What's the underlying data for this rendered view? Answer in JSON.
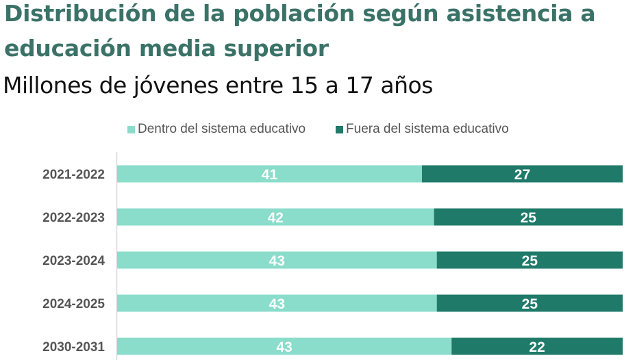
{
  "header": {
    "title": "Distribución de la población según asistencia a educación media superior",
    "subtitle": "Millones de jóvenes entre 15 a 17 años"
  },
  "colors": {
    "title": "#3B7268",
    "dentro": "#8ADCCB",
    "fuera": "#1F7A6A",
    "axis": "#D9D9D9"
  },
  "chart_data": {
    "type": "bar",
    "orientation": "horizontal",
    "stacked": true,
    "normalized": true,
    "title": "Distribución de la población según asistencia a educación media superior",
    "subtitle": "Millones de jóvenes entre 15 a 17 años",
    "xlabel": "",
    "ylabel": "",
    "grid": false,
    "legend_position": "top",
    "categories": [
      "2021-2022",
      "2022-2023",
      "2023-2024",
      "2024-2025",
      "2030-2031"
    ],
    "series": [
      {
        "name": "Dentro del sistema educativo",
        "color": "#8ADCCB",
        "values": [
          41,
          42,
          43,
          43,
          43
        ]
      },
      {
        "name": "Fuera del sistema educativo",
        "color": "#1F7A6A",
        "values": [
          27,
          25,
          25,
          25,
          22
        ]
      }
    ]
  }
}
